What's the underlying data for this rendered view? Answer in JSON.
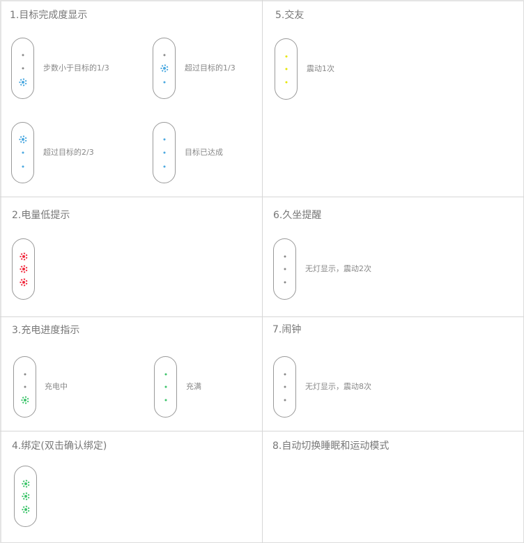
{
  "colors": {
    "off": "#888888",
    "blue": "#4aa8e0",
    "green": "#3cc46a",
    "red": "#f0283c",
    "yellow": "#e6e600"
  },
  "sections": [
    {
      "title": "1.目标完成度显示",
      "items": [
        {
          "label": "步数小于目标的1/3",
          "dots": [
            {
              "color": "off",
              "lit": false
            },
            {
              "color": "off",
              "lit": false
            },
            {
              "color": "blue",
              "lit": true
            }
          ]
        },
        {
          "label": "超过目标的1/3",
          "dots": [
            {
              "color": "off",
              "lit": false
            },
            {
              "color": "blue",
              "lit": true
            },
            {
              "color": "blue",
              "lit": false
            }
          ]
        },
        {
          "label": "超过目标的2/3",
          "dots": [
            {
              "color": "blue",
              "lit": true
            },
            {
              "color": "blue",
              "lit": false
            },
            {
              "color": "blue",
              "lit": false
            }
          ]
        },
        {
          "label": "目标已达成",
          "dots": [
            {
              "color": "blue",
              "lit": false
            },
            {
              "color": "blue",
              "lit": false
            },
            {
              "color": "blue",
              "lit": false
            }
          ]
        }
      ]
    },
    {
      "title": "5.交友",
      "items": [
        {
          "label": "震动1次",
          "dots": [
            {
              "color": "yellow",
              "lit": false
            },
            {
              "color": "yellow",
              "lit": false
            },
            {
              "color": "yellow",
              "lit": false
            }
          ]
        }
      ]
    },
    {
      "title": "2.电量低提示",
      "items": [
        {
          "label": "",
          "dots": [
            {
              "color": "red",
              "lit": true
            },
            {
              "color": "red",
              "lit": true
            },
            {
              "color": "red",
              "lit": true
            }
          ]
        }
      ]
    },
    {
      "title": "6.久坐提醒",
      "items": [
        {
          "label": "无灯显示，震动2次",
          "dots": [
            {
              "color": "off",
              "lit": false
            },
            {
              "color": "off",
              "lit": false
            },
            {
              "color": "off",
              "lit": false
            }
          ]
        }
      ]
    },
    {
      "title": "3.充电进度指示",
      "items": [
        {
          "label": "充电中",
          "dots": [
            {
              "color": "off",
              "lit": false
            },
            {
              "color": "off",
              "lit": false
            },
            {
              "color": "green",
              "lit": true
            }
          ]
        },
        {
          "label": "充满",
          "dots": [
            {
              "color": "green",
              "lit": false
            },
            {
              "color": "green",
              "lit": false
            },
            {
              "color": "green",
              "lit": false
            }
          ]
        }
      ]
    },
    {
      "title": "7.闹钟",
      "items": [
        {
          "label": "无灯显示，震动8次",
          "dots": [
            {
              "color": "off",
              "lit": false
            },
            {
              "color": "off",
              "lit": false
            },
            {
              "color": "off",
              "lit": false
            }
          ]
        }
      ]
    },
    {
      "title": "4.绑定(双击确认绑定)",
      "items": [
        {
          "label": "",
          "dots": [
            {
              "color": "green",
              "lit": true
            },
            {
              "color": "green",
              "lit": true
            },
            {
              "color": "green",
              "lit": true
            }
          ]
        }
      ]
    },
    {
      "title": "8.自动切换睡眠和运动模式",
      "items": []
    }
  ]
}
